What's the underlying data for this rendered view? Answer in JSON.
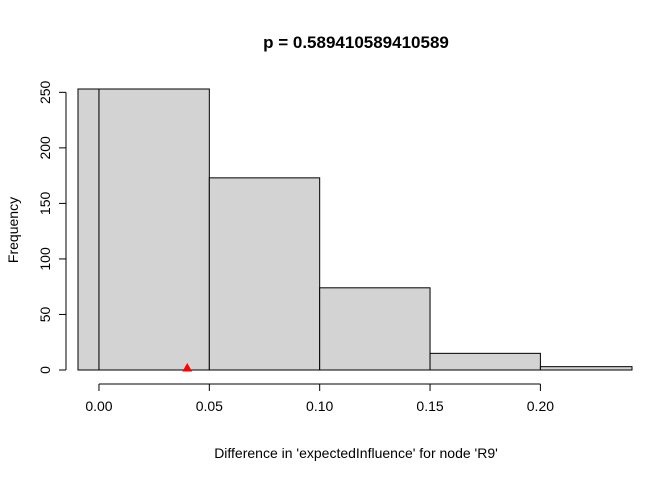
{
  "chart_data": {
    "type": "bar",
    "title": "p = 0.589410589410589",
    "xlabel": "Difference in 'expectedInfluence' for node 'R9'",
    "ylabel": "Frequency",
    "bins": [
      {
        "x0": 0.0,
        "x1": 0.05,
        "count": 253
      },
      {
        "x0": 0.05,
        "x1": 0.1,
        "count": 173
      },
      {
        "x0": 0.1,
        "x1": 0.15,
        "count": 74
      },
      {
        "x0": 0.15,
        "x1": 0.2,
        "count": 15
      },
      {
        "x0": 0.2,
        "x1": 0.25,
        "count": 3
      }
    ],
    "leading_bin": {
      "x0": -0.05,
      "x1": 0.0,
      "count": 253
    },
    "xlim": [
      -0.0095,
      0.2415
    ],
    "ylim": [
      0,
      253
    ],
    "x_ticks": [
      0.0,
      0.05,
      0.1,
      0.15,
      0.2
    ],
    "x_tick_labels": [
      "0.00",
      "0.05",
      "0.10",
      "0.15",
      "0.20"
    ],
    "y_ticks": [
      0,
      50,
      100,
      150,
      200,
      250
    ],
    "y_tick_labels": [
      "0",
      "50",
      "100",
      "150",
      "200",
      "250"
    ],
    "observed_marker": {
      "x": 0.04,
      "y": 0,
      "color": "#ff0000",
      "shape": "triangle"
    },
    "bar_fill": "#d3d3d3",
    "grid": false
  }
}
